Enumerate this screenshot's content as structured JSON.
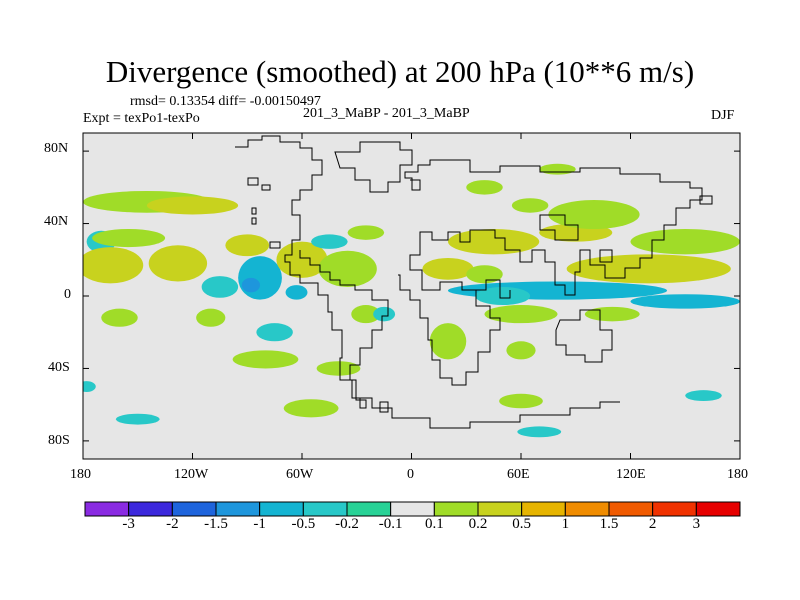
{
  "title": "Divergence (smoothed) at 200 hPa (10**6 m/s)",
  "stats": "rmsd= 0.13354 diff= -0.00150497",
  "expt": "Expt = texPo1-texPo",
  "case": "201_3_MaBP - 201_3_MaBP",
  "season": "DJF",
  "lat_ticks": [
    "80N",
    "40N",
    "0",
    "40S",
    "80S"
  ],
  "lon_ticks": [
    "180",
    "120W",
    "60W",
    "0",
    "60E",
    "120E",
    "180"
  ],
  "colorbar": {
    "labels": [
      "-3",
      "-2",
      "-1.5",
      "-1",
      "-0.5",
      "-0.2",
      "-0.1",
      "0.1",
      "0.2",
      "0.5",
      "1",
      "1.5",
      "2",
      "3"
    ],
    "colors": [
      "#8a2be2",
      "#3c28dc",
      "#1e64dc",
      "#1e96dc",
      "#14b4d2",
      "#28c8c8",
      "#28d296",
      "#e6e6e6",
      "#a0dc28",
      "#c8d21e",
      "#e6b400",
      "#f08c00",
      "#f05a00",
      "#f03200",
      "#e60000"
    ]
  },
  "chart_data": {
    "type": "heatmap",
    "title": "Divergence (smoothed) at 200 hPa (10**6 m/s)",
    "xlim": [
      -180,
      180
    ],
    "ylim": [
      -90,
      90
    ],
    "xticks": [
      "180",
      "120W",
      "60W",
      "0",
      "60E",
      "120E",
      "180"
    ],
    "yticks": [
      "80N",
      "40N",
      "0",
      "40S",
      "80S"
    ],
    "levels": [
      -3,
      -2,
      -1.5,
      -1,
      -0.5,
      -0.2,
      -0.1,
      0.1,
      0.2,
      0.5,
      1,
      1.5,
      2,
      3
    ],
    "blobs": [
      {
        "lon": -145,
        "lat": 52,
        "rlon": 35,
        "rlat": 6,
        "val": 0.2
      },
      {
        "lon": -120,
        "lat": 50,
        "rlon": 25,
        "rlat": 5,
        "val": 0.5
      },
      {
        "lon": -170,
        "lat": 30,
        "rlon": 8,
        "rlat": 6,
        "val": -0.2
      },
      {
        "lon": -155,
        "lat": 32,
        "rlon": 20,
        "rlat": 5,
        "val": 0.2
      },
      {
        "lon": -165,
        "lat": 17,
        "rlon": 18,
        "rlat": 10,
        "val": 0.5
      },
      {
        "lon": -128,
        "lat": 18,
        "rlon": 16,
        "rlat": 10,
        "val": 0.5
      },
      {
        "lon": -90,
        "lat": 28,
        "rlon": 12,
        "rlat": 6,
        "val": 0.5
      },
      {
        "lon": -83,
        "lat": 10,
        "rlon": 12,
        "rlat": 12,
        "val": -0.5
      },
      {
        "lon": -88,
        "lat": 6,
        "rlon": 5,
        "rlat": 4,
        "val": -1
      },
      {
        "lon": -105,
        "lat": 5,
        "rlon": 10,
        "rlat": 6,
        "val": -0.2
      },
      {
        "lon": -60,
        "lat": 20,
        "rlon": 14,
        "rlat": 10,
        "val": 0.5
      },
      {
        "lon": -35,
        "lat": 15,
        "rlon": 16,
        "rlat": 10,
        "val": 0.2
      },
      {
        "lon": -63,
        "lat": 2,
        "rlon": 6,
        "rlat": 4,
        "val": -0.5
      },
      {
        "lon": -45,
        "lat": 30,
        "rlon": 10,
        "rlat": 4,
        "val": -0.2
      },
      {
        "lon": -25,
        "lat": 35,
        "rlon": 10,
        "rlat": 4,
        "val": 0.2
      },
      {
        "lon": -160,
        "lat": -12,
        "rlon": 10,
        "rlat": 5,
        "val": 0.2
      },
      {
        "lon": -110,
        "lat": -12,
        "rlon": 8,
        "rlat": 5,
        "val": 0.2
      },
      {
        "lon": -75,
        "lat": -20,
        "rlon": 10,
        "rlat": 5,
        "val": -0.2
      },
      {
        "lon": -80,
        "lat": -35,
        "rlon": 18,
        "rlat": 5,
        "val": 0.2
      },
      {
        "lon": -40,
        "lat": -40,
        "rlon": 12,
        "rlat": 4,
        "val": 0.2
      },
      {
        "lon": -25,
        "lat": -10,
        "rlon": 8,
        "rlat": 5,
        "val": 0.2
      },
      {
        "lon": -15,
        "lat": -10,
        "rlon": 6,
        "rlat": 4,
        "val": -0.2
      },
      {
        "lon": -55,
        "lat": -62,
        "rlon": 15,
        "rlat": 5,
        "val": 0.2
      },
      {
        "lon": -150,
        "lat": -68,
        "rlon": 12,
        "rlat": 3,
        "val": -0.2
      },
      {
        "lon": -178,
        "lat": -50,
        "rlon": 5,
        "rlat": 3,
        "val": -0.2
      },
      {
        "lon": 20,
        "lat": 15,
        "rlon": 14,
        "rlat": 6,
        "val": 0.5
      },
      {
        "lon": 40,
        "lat": 12,
        "rlon": 10,
        "rlat": 5,
        "val": 0.2
      },
      {
        "lon": 45,
        "lat": 30,
        "rlon": 25,
        "rlat": 7,
        "val": 0.5
      },
      {
        "lon": 90,
        "lat": 35,
        "rlon": 20,
        "rlat": 5,
        "val": 0.5
      },
      {
        "lon": 100,
        "lat": 45,
        "rlon": 25,
        "rlat": 8,
        "val": 0.2
      },
      {
        "lon": 65,
        "lat": 50,
        "rlon": 10,
        "rlat": 4,
        "val": 0.2
      },
      {
        "lon": 80,
        "lat": 70,
        "rlon": 10,
        "rlat": 3,
        "val": 0.2
      },
      {
        "lon": 40,
        "lat": 60,
        "rlon": 10,
        "rlat": 4,
        "val": 0.2
      },
      {
        "lon": 150,
        "lat": 30,
        "rlon": 30,
        "rlat": 7,
        "val": 0.2
      },
      {
        "lon": 130,
        "lat": 15,
        "rlon": 45,
        "rlat": 8,
        "val": 0.5
      },
      {
        "lon": 80,
        "lat": 3,
        "rlon": 60,
        "rlat": 5,
        "val": -0.5
      },
      {
        "lon": 150,
        "lat": -3,
        "rlon": 30,
        "rlat": 4,
        "val": -0.5
      },
      {
        "lon": 50,
        "lat": 0,
        "rlon": 15,
        "rlat": 5,
        "val": -0.2
      },
      {
        "lon": 60,
        "lat": -10,
        "rlon": 20,
        "rlat": 5,
        "val": 0.2
      },
      {
        "lon": 110,
        "lat": -10,
        "rlon": 15,
        "rlat": 4,
        "val": 0.2
      },
      {
        "lon": 20,
        "lat": -25,
        "rlon": 10,
        "rlat": 10,
        "val": 0.2
      },
      {
        "lon": 60,
        "lat": -30,
        "rlon": 8,
        "rlat": 5,
        "val": 0.2
      },
      {
        "lon": 60,
        "lat": -58,
        "rlon": 12,
        "rlat": 4,
        "val": 0.2
      },
      {
        "lon": 70,
        "lat": -75,
        "rlon": 12,
        "rlat": 3,
        "val": -0.2
      },
      {
        "lon": 160,
        "lat": -55,
        "rlon": 10,
        "rlat": 3,
        "val": -0.2
      }
    ]
  }
}
